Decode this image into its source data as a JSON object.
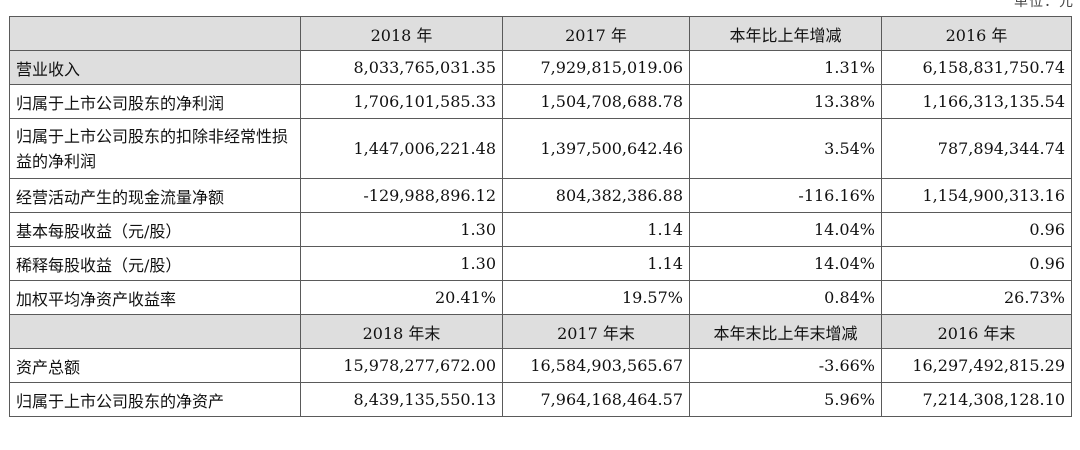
{
  "corner_text": "单位：元",
  "table": {
    "header1": [
      "2018 年",
      "2017 年",
      "本年比上年增减",
      "2016 年"
    ],
    "rows1": [
      {
        "label": "营业收入",
        "values": [
          "8,033,765,031.35",
          "7,929,815,019.06",
          "1.31%",
          "6,158,831,750.74"
        ]
      },
      {
        "label": "归属于上市公司股东的净利润",
        "values": [
          "1,706,101,585.33",
          "1,504,708,688.78",
          "13.38%",
          "1,166,313,135.54"
        ]
      },
      {
        "label": "归属于上市公司股东的扣除非经常性损益的净利润",
        "values": [
          "1,447,006,221.48",
          "1,397,500,642.46",
          "3.54%",
          "787,894,344.74"
        ]
      },
      {
        "label": "经营活动产生的现金流量净额",
        "values": [
          "-129,988,896.12",
          "804,382,386.88",
          "-116.16%",
          "1,154,900,313.16"
        ]
      },
      {
        "label": "基本每股收益（元/股）",
        "values": [
          "1.30",
          "1.14",
          "14.04%",
          "0.96"
        ]
      },
      {
        "label": "稀释每股收益（元/股）",
        "values": [
          "1.30",
          "1.14",
          "14.04%",
          "0.96"
        ]
      },
      {
        "label": "加权平均净资产收益率",
        "values": [
          "20.41%",
          "19.57%",
          "0.84%",
          "26.73%"
        ]
      }
    ],
    "header2": [
      "2018 年末",
      "2017 年末",
      "本年末比上年末增减",
      "2016 年末"
    ],
    "rows2": [
      {
        "label": "资产总额",
        "values": [
          "15,978,277,672.00",
          "16,584,903,565.67",
          "-3.66%",
          "16,297,492,815.29"
        ]
      },
      {
        "label": "归属于上市公司股东的净资产",
        "values": [
          "8,439,135,550.13",
          "7,964,168,464.57",
          "5.96%",
          "7,214,308,128.10"
        ]
      }
    ]
  }
}
